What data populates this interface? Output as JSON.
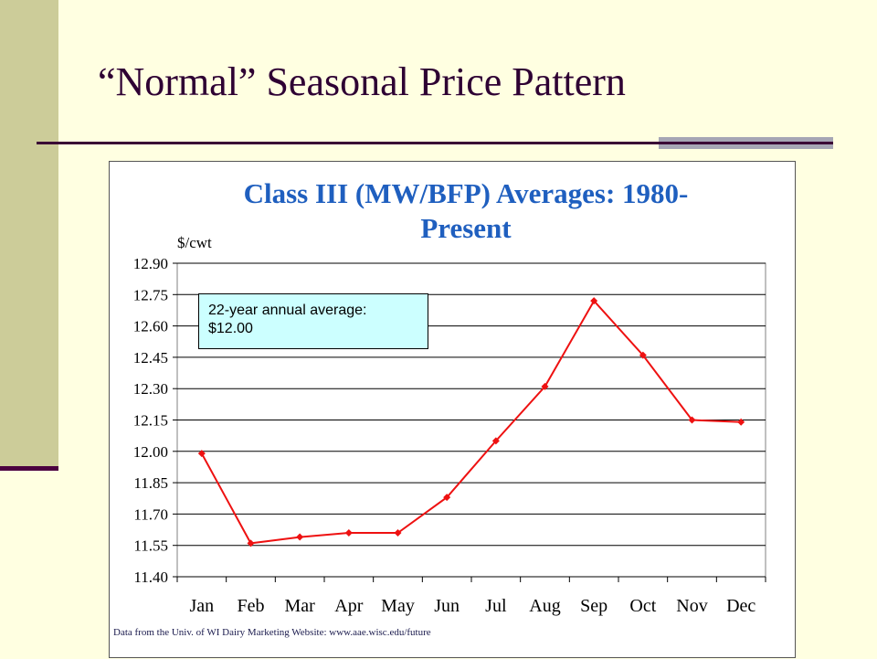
{
  "slide": {
    "title": "“Normal” Seasonal Price Pattern"
  },
  "annotation": {
    "line1": "22-year annual average:",
    "line2": "$12.00"
  },
  "source_note": "Data from the Univ. of WI Dairy Marketing Website: www.aae.wisc.edu/future",
  "chart_data": {
    "type": "line",
    "title": "Class III (MW/BFP) Averages: 1980-Present",
    "title_lines": [
      "Class III (MW/BFP) Averages: 1980-",
      "Present"
    ],
    "ylabel": "$/cwt",
    "xlabel": "",
    "categories": [
      "Jan",
      "Feb",
      "Mar",
      "Apr",
      "May",
      "Jun",
      "Jul",
      "Aug",
      "Sep",
      "Oct",
      "Nov",
      "Dec"
    ],
    "y_ticks": [
      "12.90",
      "12.75",
      "12.60",
      "12.45",
      "12.30",
      "12.15",
      "12.00",
      "11.85",
      "11.70",
      "11.55",
      "11.40"
    ],
    "ylim": [
      11.4,
      12.9
    ],
    "grid": true,
    "series": [
      {
        "values": [
          11.99,
          11.56,
          11.59,
          11.61,
          11.61,
          11.78,
          12.05,
          12.31,
          12.72,
          12.46,
          12.15,
          12.14
        ],
        "color": "#ee1111"
      }
    ]
  },
  "colors": {
    "background": "#ffffe1",
    "left_band": "#cccc99",
    "title": "#2e0033",
    "chart_title": "#1f5fbf",
    "series": "#ee1111",
    "annotation_fill": "#ccffff"
  }
}
